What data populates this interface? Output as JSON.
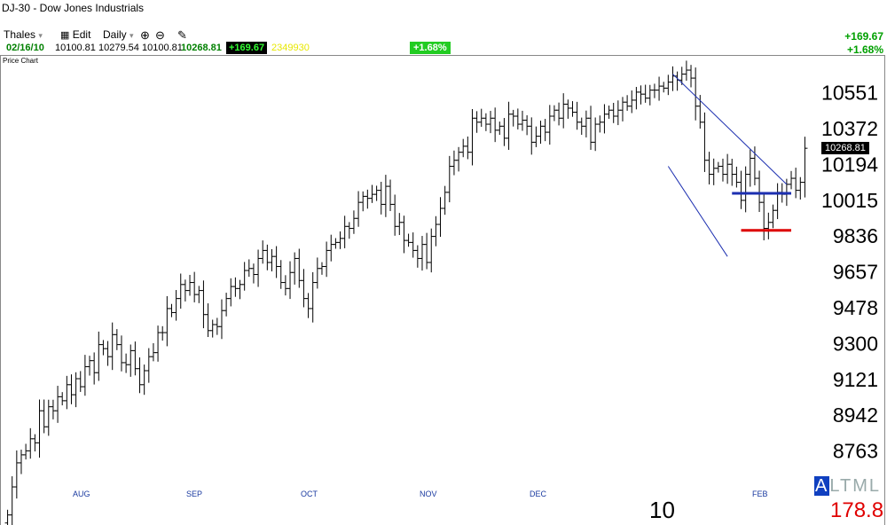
{
  "window": {
    "title": "DJ-30  -  Dow Jones Industrials"
  },
  "toolbar": {
    "user": "Thales",
    "edit": "Edit",
    "period": "Daily"
  },
  "quote": {
    "date": "02/16/10",
    "open": "10100.81",
    "high": "10279.54",
    "low": "10100.81",
    "close": "10268.81",
    "change": "+169.67",
    "volume": "2349930",
    "pct_change": "+1.68%",
    "right_change": "+169.67",
    "right_pct": "+1.68%"
  },
  "panel": {
    "label": "Price Chart"
  },
  "footer": {
    "year": "10",
    "alt_a": "A",
    "alt_rest": "LTML",
    "readout": "178.8"
  },
  "price_tag": "10268.81",
  "colors": {
    "up": "#00a000",
    "blue_line": "#1c2fb0",
    "red_line": "#dd0000",
    "axis_month": "#1a3aa0"
  },
  "chart_data": {
    "type": "ohlc",
    "y_ticks": [
      10551,
      10372,
      10194,
      10015,
      9836,
      9657,
      9478,
      9300,
      9121,
      8942,
      8763
    ],
    "x_ticks": [
      "AUG",
      "SEP",
      "OCT",
      "NOV",
      "DEC",
      "FEB"
    ],
    "ylim": [
      8620,
      10700
    ],
    "closes": [
      8440,
      8580,
      8700,
      8740,
      8760,
      8820,
      8800,
      8960,
      8880,
      8980,
      8960,
      9030,
      9010,
      9090,
      9040,
      9120,
      9080,
      9180,
      9210,
      9150,
      9290,
      9270,
      9230,
      9340,
      9290,
      9200,
      9190,
      9260,
      9170,
      9090,
      9160,
      9230,
      9250,
      9350,
      9350,
      9470,
      9450,
      9520,
      9590,
      9560,
      9600,
      9540,
      9560,
      9440,
      9360,
      9390,
      9380,
      9460,
      9520,
      9580,
      9570,
      9590,
      9660,
      9670,
      9640,
      9720,
      9760,
      9700,
      9730,
      9680,
      9600,
      9570,
      9650,
      9720,
      9610,
      9520,
      9470,
      9600,
      9670,
      9680,
      9760,
      9790,
      9800,
      9820,
      9880,
      9870,
      9920,
      10000,
      10030,
      10020,
      10040,
      10060,
      9990,
      10080,
      9990,
      9880,
      9900,
      9810,
      9800,
      9760,
      9720,
      9790,
      9700,
      9830,
      9890,
      9970,
      10050,
      10180,
      10210,
      10250,
      10280,
      10250,
      10420,
      10400,
      10420,
      10390,
      10420,
      10360,
      10380,
      10320,
      10440,
      10430,
      10390,
      10410,
      10380,
      10300,
      10330,
      10380,
      10350,
      10430,
      10460,
      10420,
      10490,
      10470,
      10450,
      10400,
      10380,
      10420,
      10300,
      10390,
      10400,
      10440,
      10460,
      10430,
      10460,
      10500,
      10480,
      10510,
      10550,
      10540,
      10520,
      10560,
      10560,
      10580,
      10570,
      10600,
      10630,
      10610,
      10640,
      10660,
      10620,
      10480,
      10400,
      10210,
      10140,
      10170,
      10180,
      10140,
      10190,
      10140,
      10100,
      10010,
      10140,
      10220,
      10120,
      10000,
      9870,
      9900,
      9960,
      10050,
      10040,
      10090,
      10120,
      10060,
      10100,
      10270
    ],
    "upper_line": {
      "from": [
        146,
        10640
      ],
      "to": [
        171,
        10090
      ]
    },
    "lower_line": {
      "from": [
        145,
        10180
      ],
      "to": [
        158,
        9730
      ]
    },
    "blue_line": {
      "from": [
        159,
        10045
      ],
      "to": [
        172,
        10045
      ]
    },
    "red_line": {
      "from": [
        161,
        9860
      ],
      "to": [
        172,
        9860
      ]
    },
    "gaps_after_index": [
      171
    ]
  }
}
